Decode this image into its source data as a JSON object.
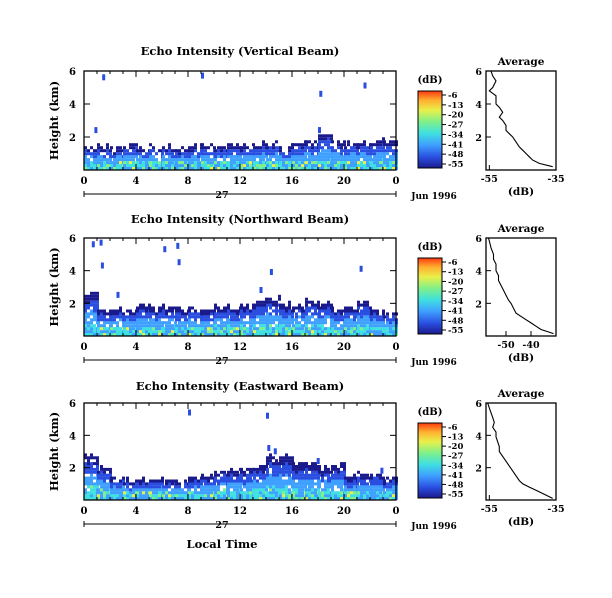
{
  "figure": {
    "date_label": "Jun 1996",
    "day_label": "27",
    "xlabel_bottom": "Local Time",
    "colorbar_unit": "(dB)",
    "colorbar_ticks": [
      "-6",
      "-13",
      "-20",
      "-27",
      "-34",
      "-41",
      "-48",
      "-55"
    ],
    "average_title": "Average",
    "average_xlabel": "(dB)"
  },
  "chart_data": [
    {
      "type": "heatmap",
      "title": "Echo Intensity (Vertical Beam)",
      "ylabel": "Height (km)",
      "xlim": [
        0,
        24
      ],
      "ylim": [
        0,
        6
      ],
      "xticks": [
        "0",
        "4",
        "8",
        "12",
        "16",
        "20",
        "0"
      ],
      "yticks": [
        "2",
        "4",
        "6"
      ],
      "color_range_db": [
        -55,
        -6
      ],
      "colormap": [
        "#1a1a8c",
        "#2a4ee0",
        "#3fa0ff",
        "#3fe0e0",
        "#7ff08a",
        "#e8f04a",
        "#ffb030",
        "#ff3a10"
      ],
      "echo_top_km": [
        1.3,
        1.4,
        1.2,
        1.5,
        1.3,
        1.3,
        1.3,
        1.2,
        1.4,
        1.5,
        1.4,
        1.5,
        1.4,
        1.5,
        1.6,
        1.4,
        1.5,
        1.6,
        2.2,
        1.7,
        1.6,
        1.6,
        1.7,
        1.7
      ],
      "scattered_echo_points_km": [
        [
          1.4,
          5.8
        ],
        [
          9.0,
          5.9
        ],
        [
          18.1,
          4.8
        ],
        [
          21.5,
          5.3
        ],
        [
          0.8,
          2.6
        ],
        [
          18.0,
          2.6
        ]
      ]
    },
    {
      "type": "heatmap",
      "title": "Echo Intensity (Northward Beam)",
      "ylabel": "Height (km)",
      "xlim": [
        0,
        24
      ],
      "ylim": [
        0,
        6
      ],
      "xticks": [
        "0",
        "4",
        "8",
        "12",
        "16",
        "20",
        "0"
      ],
      "yticks": [
        "2",
        "4",
        "6"
      ],
      "color_range_db": [
        -55,
        -6
      ],
      "colormap": [
        "#1a1a8c",
        "#2a4ee0",
        "#3fa0ff",
        "#3fe0e0",
        "#7ff08a",
        "#e8f04a",
        "#ffb030",
        "#ff3a10"
      ],
      "echo_top_km": [
        2.6,
        1.5,
        1.6,
        1.6,
        1.8,
        1.6,
        1.7,
        1.5,
        1.6,
        1.5,
        1.7,
        1.7,
        1.8,
        2.0,
        2.2,
        1.9,
        1.8,
        2.1,
        1.9,
        1.6,
        1.7,
        2.0,
        1.5,
        1.3
      ],
      "scattered_echo_points_km": [
        [
          0.6,
          5.8
        ],
        [
          1.2,
          5.9
        ],
        [
          1.3,
          4.5
        ],
        [
          6.1,
          5.5
        ],
        [
          7.1,
          5.7
        ],
        [
          7.2,
          4.7
        ],
        [
          14.3,
          4.1
        ],
        [
          21.2,
          4.3
        ],
        [
          2.5,
          2.7
        ],
        [
          13.5,
          3.0
        ]
      ]
    },
    {
      "type": "heatmap",
      "title": "Echo Intensity (Eastward Beam)",
      "ylabel": "Height (km)",
      "xlabel": "Local Time",
      "xlim": [
        0,
        24
      ],
      "ylim": [
        0,
        6
      ],
      "xticks": [
        "0",
        "4",
        "8",
        "12",
        "16",
        "20",
        "0"
      ],
      "yticks": [
        "2",
        "4",
        "6"
      ],
      "color_range_db": [
        -55,
        -6
      ],
      "colormap": [
        "#1a1a8c",
        "#2a4ee0",
        "#3fa0ff",
        "#3fe0e0",
        "#7ff08a",
        "#e8f04a",
        "#ffb030",
        "#ff3a10"
      ],
      "echo_top_km": [
        2.8,
        2.0,
        1.3,
        1.1,
        1.1,
        1.2,
        1.1,
        1.2,
        1.3,
        1.4,
        1.7,
        1.8,
        1.8,
        2.0,
        2.6,
        2.7,
        2.1,
        2.2,
        1.9,
        2.1,
        1.4,
        1.5,
        1.6,
        1.2
      ],
      "scattered_echo_points_km": [
        [
          8.0,
          5.6
        ],
        [
          14.0,
          5.4
        ],
        [
          14.1,
          3.4
        ],
        [
          14.6,
          3.2
        ],
        [
          17.9,
          2.6
        ],
        [
          22.8,
          2.0
        ]
      ]
    },
    {
      "type": "line",
      "title": "Average",
      "xlabel": "(dB)",
      "xlim": [
        -56,
        -35
      ],
      "ylim": [
        0,
        6
      ],
      "xticks": [
        "-55",
        "-35"
      ],
      "yticks": [
        "2",
        "4",
        "6"
      ],
      "x": [
        -54.5,
        -54,
        -53,
        -54,
        -55,
        -53,
        -53,
        -52,
        -51,
        -52,
        -51,
        -50,
        -50,
        -49,
        -48,
        -47,
        -46,
        -45,
        -44,
        -43,
        -42,
        -40,
        -36
      ],
      "y": [
        6.0,
        5.7,
        5.4,
        5.0,
        4.8,
        4.5,
        4.0,
        3.8,
        3.5,
        3.2,
        3.0,
        2.7,
        2.4,
        2.2,
        2.0,
        1.7,
        1.4,
        1.2,
        1.0,
        0.8,
        0.6,
        0.4,
        0.2
      ]
    },
    {
      "type": "line",
      "title": "Average",
      "xlabel": "(dB)",
      "xlim": [
        -58,
        -30
      ],
      "ylim": [
        0,
        6
      ],
      "xticks": [
        "-50",
        "-40"
      ],
      "yticks": [
        "2",
        "4",
        "6"
      ],
      "x": [
        -57,
        -56.5,
        -56,
        -55,
        -55,
        -54,
        -54,
        -53,
        -53,
        -52,
        -51,
        -50,
        -49,
        -48,
        -47,
        -46,
        -44,
        -42,
        -40,
        -38,
        -36,
        -34,
        -31
      ],
      "y": [
        6.0,
        5.7,
        5.4,
        5.0,
        4.7,
        4.4,
        4.0,
        3.7,
        3.4,
        3.1,
        2.8,
        2.5,
        2.2,
        2.0,
        1.7,
        1.4,
        1.2,
        1.0,
        0.8,
        0.6,
        0.4,
        0.3,
        0.15
      ]
    },
    {
      "type": "line",
      "title": "Average",
      "xlabel": "(dB)",
      "xlim": [
        -56,
        -35
      ],
      "ylim": [
        0,
        6
      ],
      "xticks": [
        "-55",
        "-35"
      ],
      "yticks": [
        "2",
        "4",
        "6"
      ],
      "x": [
        -55.5,
        -55,
        -54.5,
        -54,
        -53.5,
        -54,
        -53,
        -53,
        -52.5,
        -52,
        -52,
        -51,
        -50,
        -49,
        -48,
        -47,
        -46,
        -45,
        -43,
        -41,
        -39,
        -37,
        -36
      ],
      "y": [
        6.0,
        5.7,
        5.4,
        5.1,
        4.8,
        4.5,
        4.2,
        3.9,
        3.6,
        3.3,
        3.0,
        2.7,
        2.4,
        2.1,
        1.8,
        1.5,
        1.2,
        1.0,
        0.8,
        0.6,
        0.4,
        0.2,
        0.1
      ]
    }
  ]
}
